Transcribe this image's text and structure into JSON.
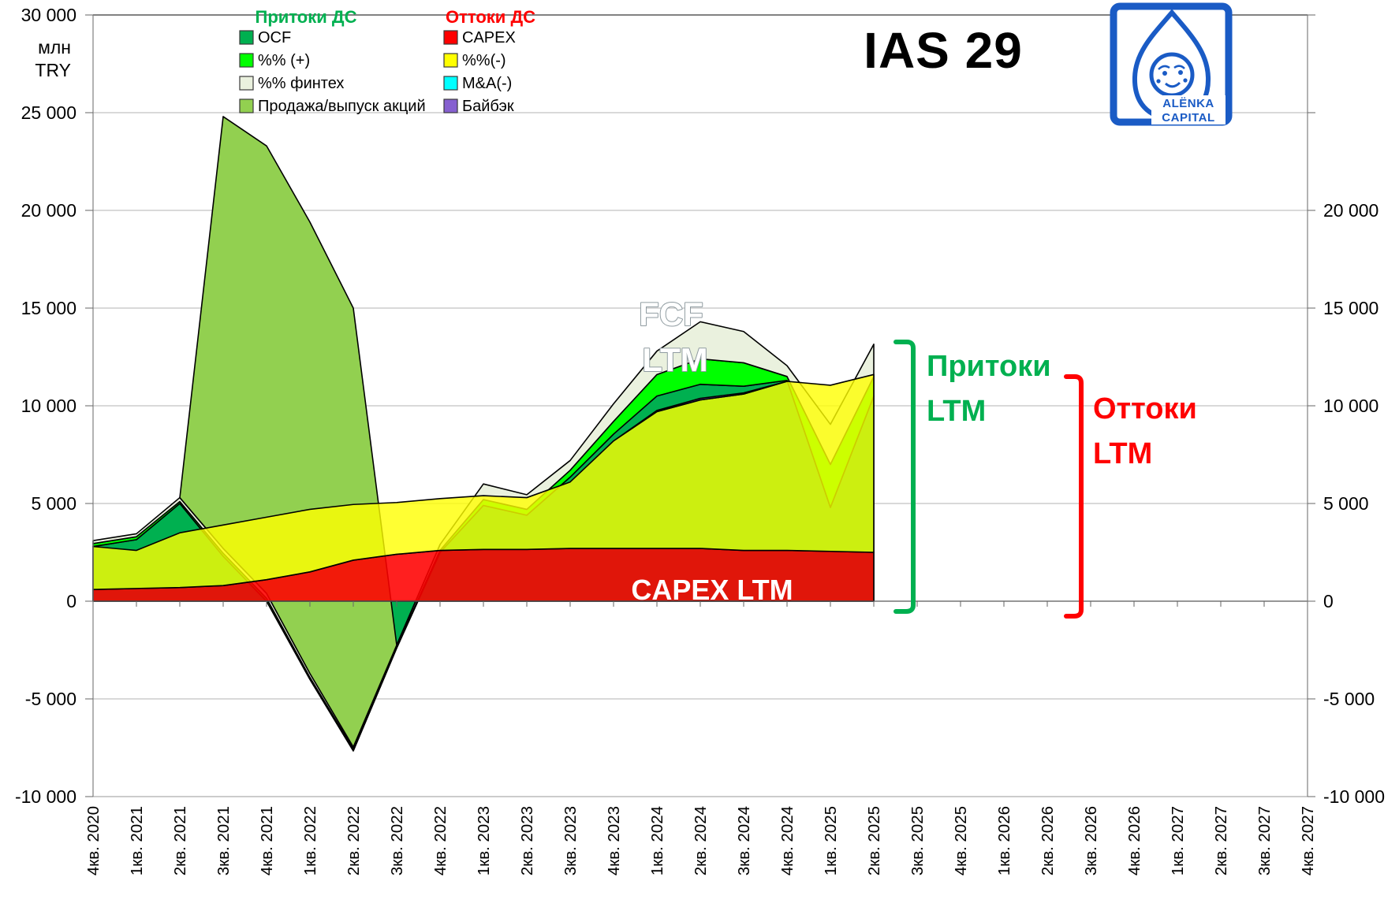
{
  "title": "IAS 29",
  "unit": {
    "line1": "млн",
    "line2": "TRY"
  },
  "legend": {
    "inflows": {
      "header": "Притоки ДС",
      "header_color": "#00B050",
      "items": [
        {
          "label": "OCF",
          "color": "#00B050"
        },
        {
          "label": "%% (+)",
          "color": "#00FF00"
        },
        {
          "label": "%% финтех",
          "color": "#EAF1DE"
        },
        {
          "label": "Продажа/выпуск акций",
          "color": "#92D050"
        }
      ]
    },
    "outflows": {
      "header": "Оттоки ДС",
      "header_color": "#FF0000",
      "items": [
        {
          "label": "CAPEX",
          "color": "#FF0000"
        },
        {
          "label": "%%(-)",
          "color": "#FFFF00"
        },
        {
          "label": "M&A(-)",
          "color": "#00FFFF"
        },
        {
          "label": "Байбэк",
          "color": "#8660D0"
        }
      ]
    }
  },
  "annotations": {
    "fcf": {
      "line1": "FCF",
      "line2": "LTM"
    },
    "capex": {
      "label": "CAPEX LTM"
    },
    "inflows_bracket": {
      "line1": "Притоки",
      "line2": "LTM",
      "color": "#00B050",
      "value": 13150
    },
    "outflows_bracket": {
      "line1": "Оттоки",
      "line2": "LTM",
      "color": "#FF0000",
      "value": 11600
    }
  },
  "logo": {
    "line1": "ALЁNKA",
    "line2": "CAPITAL",
    "color": "#1A5BC5"
  },
  "chart_data": {
    "type": "area",
    "subtype": "two overlapping stacked LTM flows (inflows painted first, outflows painted over)",
    "unit": "млн TRY",
    "categories": [
      "4кв. 2020",
      "1кв. 2021",
      "2кв. 2021",
      "3кв. 2021",
      "4кв. 2021",
      "1кв. 2022",
      "2кв. 2022",
      "3кв. 2022",
      "4кв. 2022",
      "1кв. 2023",
      "2кв. 2023",
      "3кв. 2023",
      "4кв. 2023",
      "1кв. 2024",
      "2кв. 2024",
      "3кв. 2024",
      "4кв. 2024",
      "1кв. 2025",
      "2кв. 2025",
      "3кв. 2025",
      "4кв. 2025",
      "1кв. 2026",
      "2кв. 2026",
      "3кв. 2026",
      "4кв. 2026",
      "1кв. 2027",
      "2кв. 2027",
      "3кв. 2027",
      "4кв. 2027"
    ],
    "plotted_points": 19,
    "y_axis": {
      "min": -10000,
      "max": 30000,
      "grid_step": 5000,
      "grid_on": true,
      "left_labels": [
        "30 000",
        "25 000",
        "20 000",
        "15 000",
        "10 000",
        "5 000",
        "0",
        "-5 000",
        "-10 000"
      ],
      "right_labels": [
        "20 000",
        "15 000",
        "10 000",
        "5 000",
        "0",
        "-5 000",
        "-10 000"
      ]
    },
    "series": [
      {
        "name": "OCF",
        "group": "inflow",
        "color": "#00B050",
        "opacity": 1,
        "values": [
          2800,
          3150,
          5000,
          2300,
          0,
          -4000,
          -7660,
          -2400,
          2500,
          4900,
          4400,
          6350,
          8550,
          10500,
          11100,
          11000,
          11300,
          4800,
          10500
        ]
      },
      {
        "name": "%% (+)",
        "group": "inflow",
        "color": "#00FF00",
        "opacity": 1,
        "values": [
          150,
          150,
          100,
          150,
          150,
          100,
          100,
          50,
          100,
          300,
          300,
          350,
          650,
          1100,
          1300,
          1200,
          200,
          2200,
          1000
        ]
      },
      {
        "name": "%% финтех",
        "group": "inflow",
        "color": "#EAF1DE",
        "opacity": 1,
        "values": [
          150,
          150,
          200,
          250,
          250,
          200,
          100,
          100,
          300,
          800,
          750,
          500,
          900,
          1200,
          1900,
          1600,
          550,
          2050,
          1650
        ]
      },
      {
        "name": "Продажа/выпуск акций",
        "group": "inflow",
        "color": "#92D050",
        "opacity": 1,
        "values": [
          0,
          0,
          0,
          22100,
          22900,
          23100,
          22460,
          10,
          0,
          0,
          0,
          0,
          0,
          0,
          0,
          0,
          0,
          0,
          0
        ]
      },
      {
        "name": "CAPEX",
        "group": "outflow",
        "color": "#FF0000",
        "opacity": 0.88,
        "values": [
          600,
          650,
          700,
          800,
          1100,
          1500,
          2100,
          2400,
          2600,
          2650,
          2650,
          2700,
          2700,
          2700,
          2700,
          2600,
          2600,
          2550,
          2500
        ]
      },
      {
        "name": "%%(-)",
        "group": "outflow",
        "color": "#FFFF00",
        "opacity": 0.8,
        "values": [
          2200,
          1950,
          2800,
          3100,
          3200,
          3200,
          2850,
          2650,
          2650,
          2750,
          2650,
          3400,
          5500,
          7000,
          7600,
          8000,
          8650,
          8500,
          9100
        ]
      },
      {
        "name": "M&A(-)",
        "group": "outflow",
        "color": "#00FFFF",
        "opacity": 1,
        "values": [
          0,
          0,
          0,
          0,
          0,
          0,
          0,
          0,
          0,
          0,
          0,
          0,
          0,
          0,
          0,
          0,
          0,
          0,
          0
        ]
      },
      {
        "name": "Байбэк",
        "group": "outflow",
        "color": "#8660D0",
        "opacity": 1,
        "values": [
          0,
          0,
          0,
          0,
          0,
          0,
          0,
          0,
          0,
          0,
          0,
          0,
          0,
          60,
          80,
          60,
          0,
          0,
          0
        ]
      }
    ],
    "annotation_values": {
      "inflows_ltm_end": 13150,
      "outflows_ltm_end": 11600,
      "capex_ltm_end": 2500,
      "peak_share_sale": 24800,
      "dip_2q2022": -7660,
      "fcf_fintech_peak_2q2024": 14300
    }
  }
}
